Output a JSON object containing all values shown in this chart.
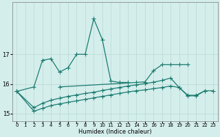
{
  "xlabel": "Humidex (Indice chaleur)",
  "line1_x": [
    0,
    2,
    3,
    4,
    5,
    6,
    7,
    8,
    9,
    10,
    11,
    12,
    13
  ],
  "line1_y": [
    15.75,
    15.9,
    16.8,
    16.85,
    16.4,
    16.55,
    17.0,
    17.0,
    18.2,
    17.5,
    16.1,
    16.05,
    16.05
  ],
  "line2_x": [
    5,
    14,
    15,
    16,
    17,
    18,
    19,
    20
  ],
  "line2_y": [
    15.9,
    16.05,
    16.07,
    16.45,
    16.65,
    16.65,
    16.65,
    16.65
  ],
  "line3_x": [
    0,
    2,
    3,
    4,
    5,
    6,
    7,
    8,
    9,
    10,
    11,
    12,
    13,
    14,
    15,
    16,
    17,
    18,
    19,
    20,
    21,
    22,
    23
  ],
  "line3_y": [
    15.75,
    15.2,
    15.35,
    15.45,
    15.52,
    15.58,
    15.63,
    15.68,
    15.72,
    15.78,
    15.83,
    15.88,
    15.93,
    15.97,
    16.01,
    16.06,
    16.12,
    16.2,
    15.88,
    15.62,
    15.62,
    15.77,
    15.77
  ],
  "line4_x": [
    0,
    2,
    3,
    4,
    5,
    6,
    7,
    8,
    9,
    10,
    11,
    12,
    13,
    14,
    15,
    16,
    17,
    18,
    19,
    20,
    21,
    22
  ],
  "line4_y": [
    15.75,
    15.08,
    15.18,
    15.27,
    15.33,
    15.38,
    15.43,
    15.48,
    15.53,
    15.58,
    15.63,
    15.68,
    15.73,
    15.77,
    15.8,
    15.84,
    15.88,
    15.93,
    15.88,
    15.6,
    15.6,
    15.77
  ],
  "line_color": "#1a7a6e",
  "bg_color": "#d4eeec",
  "grid_color": "#b8d8d5",
  "ylim": [
    14.75,
    18.75
  ],
  "yticks": [
    15,
    16,
    17
  ],
  "xticks": [
    0,
    1,
    2,
    3,
    4,
    5,
    6,
    7,
    8,
    9,
    10,
    11,
    12,
    13,
    14,
    15,
    16,
    17,
    18,
    19,
    20,
    21,
    22,
    23
  ]
}
